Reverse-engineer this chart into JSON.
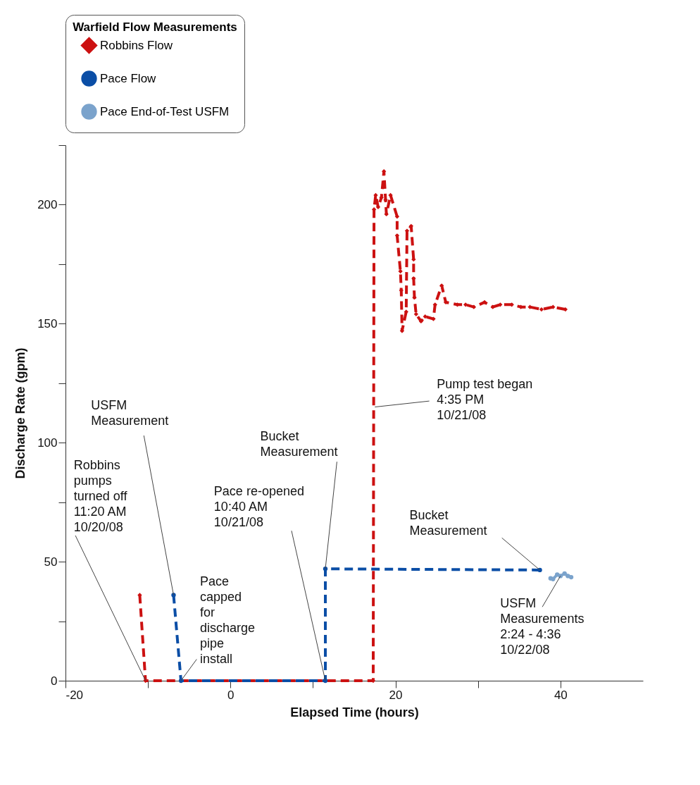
{
  "chart_data": {
    "type": "line",
    "legend_title": "Warfield Flow Measurements",
    "xlabel": "Elapsed Time (hours)",
    "ylabel": "Discharge Rate (gpm)",
    "xlim": [
      -20,
      50
    ],
    "xticks": [
      -20,
      {
        "value": -10,
        "label": null
      },
      0,
      {
        "value": 10,
        "label": null
      },
      20,
      {
        "value": 30,
        "label": null
      },
      40
    ],
    "ylim": [
      0,
      225
    ],
    "yticks": [
      0,
      {
        "value": 25,
        "label": null
      },
      50,
      {
        "value": 75,
        "label": null
      },
      100,
      {
        "value": 125,
        "label": null
      },
      150,
      {
        "value": 175,
        "label": null
      },
      200,
      {
        "value": 225,
        "label": null
      }
    ],
    "grid": false,
    "legend": "top",
    "series": [
      {
        "name": "Robbins Flow",
        "color": "#cc1111",
        "line_style": "dashed",
        "marker": "diamond",
        "x": [
          -11.0,
          -10.3,
          17.3,
          17.4,
          17.6,
          17.9,
          18.3,
          18.6,
          18.8,
          18.9,
          19.4,
          20.2,
          20.2,
          20.6,
          20.7,
          20.8,
          21.3,
          21.4,
          21.9,
          22.2,
          22.2,
          22.3,
          22.5,
          23.1,
          23.6,
          24.6,
          24.8,
          25.6,
          26.1,
          27.5,
          28.5,
          29.5,
          30.8,
          31.8,
          32.7,
          34.1,
          35.2,
          36.3,
          37.7,
          39.1,
          40.6
        ],
        "values": [
          36,
          0,
          0,
          198,
          204,
          199,
          203,
          214,
          202,
          196,
          204,
          195,
          187,
          172,
          164,
          147,
          155,
          189,
          191,
          177,
          169,
          161,
          154,
          151,
          153,
          152,
          158,
          166,
          159,
          158,
          158,
          157,
          159,
          157,
          158,
          158,
          157,
          157,
          156,
          157,
          156
        ]
      },
      {
        "name": "Pace Flow",
        "color": "#0b4ea6",
        "line_style": "dashed",
        "marker": "circle",
        "x": [
          -6.9,
          -6.0,
          11.5,
          11.5,
          37.5
        ],
        "values": [
          36,
          0,
          0,
          47,
          46.5
        ]
      },
      {
        "name": "Pace End-of-Test USFM",
        "color": "#7ba3cc",
        "line_style": "solid",
        "marker": "circle",
        "x": [
          38.8,
          39.1,
          39.6,
          40.0,
          40.5,
          40.9,
          41.3
        ],
        "values": [
          43,
          42.7,
          44.6,
          44,
          45,
          44,
          43.5
        ]
      }
    ],
    "annotations": [
      {
        "text": "Robbins\npumps\nturned off\n11:20 AM\n10/20/08",
        "x": -10.3,
        "y": 0
      },
      {
        "text": "USFM\nMeasurement",
        "x": -6.9,
        "y": 36
      },
      {
        "text": "Pace\ncapped\nfor\ndischarge\npipe\ninstall",
        "x": -6.0,
        "y": 0
      },
      {
        "text": "Pace re-opened\n10:40 AM\n10/21/08",
        "x": 11.5,
        "y": 0
      },
      {
        "text": "Bucket\nMeasurement",
        "x": 11.5,
        "y": 47
      },
      {
        "text": "Pump test began\n4:35 PM\n10/21/08",
        "x": 17.5,
        "y": 115
      },
      {
        "text": "Bucket\nMeasurement",
        "x": 37.5,
        "y": 46.5
      },
      {
        "text": "USFM\nMeasurements\n2:24 - 4:36\n10/22/08",
        "x": 40.0,
        "y": 44
      }
    ]
  }
}
